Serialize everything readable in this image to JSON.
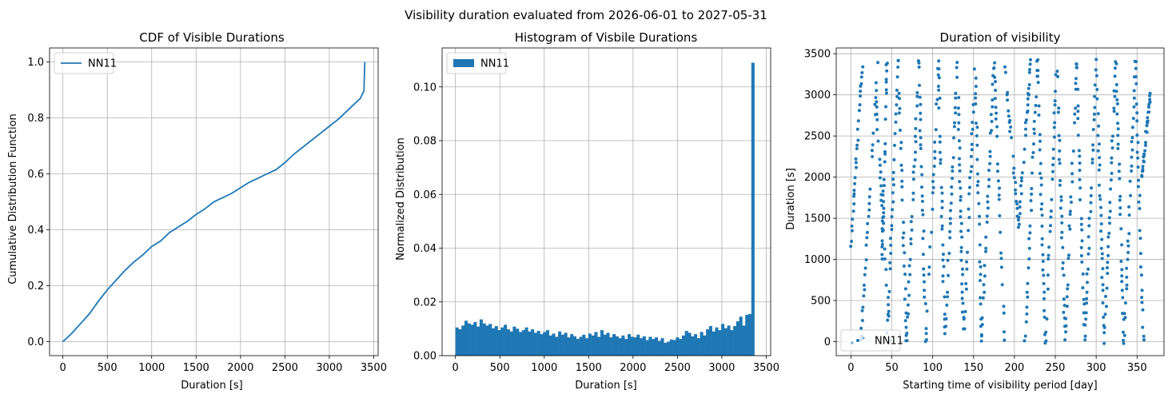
{
  "figure": {
    "suptitle": "Visibility duration evaluated from 2026-06-01 to 2027-05-31",
    "series_color": "#1f77b4"
  },
  "chart_data": [
    {
      "type": "line",
      "title": "CDF of Visible Durations",
      "xlabel": "Duration [s]",
      "ylabel": "Cumulative Distribution Function",
      "xlim": [
        -150,
        3550
      ],
      "ylim": [
        -0.05,
        1.05
      ],
      "xticks": [
        0,
        500,
        1000,
        1500,
        2000,
        2500,
        3000,
        3500
      ],
      "yticks": [
        0.0,
        0.2,
        0.4,
        0.6,
        0.8,
        1.0
      ],
      "ytick_labels": [
        "0.0",
        "0.2",
        "0.4",
        "0.6",
        "0.8",
        "1.0"
      ],
      "grid": true,
      "legend": "upper left",
      "series": [
        {
          "name": "NN11",
          "x": [
            0,
            100,
            200,
            300,
            400,
            500,
            600,
            700,
            800,
            900,
            1000,
            1100,
            1200,
            1300,
            1400,
            1500,
            1600,
            1700,
            1800,
            1900,
            2000,
            2100,
            2200,
            2300,
            2400,
            2500,
            2600,
            2700,
            2800,
            2900,
            3000,
            3100,
            3200,
            3300,
            3350,
            3380,
            3390,
            3400
          ],
          "y": [
            0.0,
            0.03,
            0.065,
            0.1,
            0.145,
            0.185,
            0.22,
            0.255,
            0.285,
            0.31,
            0.34,
            0.36,
            0.39,
            0.41,
            0.43,
            0.455,
            0.475,
            0.5,
            0.515,
            0.53,
            0.55,
            0.57,
            0.585,
            0.6,
            0.615,
            0.64,
            0.67,
            0.695,
            0.72,
            0.745,
            0.77,
            0.795,
            0.825,
            0.855,
            0.87,
            0.89,
            0.895,
            1.0
          ]
        }
      ]
    },
    {
      "type": "bar",
      "title": "Histogram of Visbile Durations",
      "xlabel": "Duration [s]",
      "ylabel": "Normalized Distribution",
      "xlim": [
        -150,
        3550
      ],
      "ylim": [
        0,
        0.1145
      ],
      "xticks": [
        0,
        500,
        1000,
        1500,
        2000,
        2500,
        3000,
        3500
      ],
      "yticks": [
        0.0,
        0.02,
        0.04,
        0.06,
        0.08,
        0.1
      ],
      "ytick_labels": [
        "0.00",
        "0.02",
        "0.04",
        "0.06",
        "0.08",
        "0.10"
      ],
      "grid": true,
      "legend": "upper left",
      "bin_start": 0,
      "bin_width": 34,
      "series": [
        {
          "name": "NN11",
          "values": [
            0.0105,
            0.0098,
            0.0112,
            0.013,
            0.012,
            0.0115,
            0.0125,
            0.0108,
            0.0135,
            0.012,
            0.0112,
            0.0118,
            0.0102,
            0.011,
            0.0095,
            0.0105,
            0.0115,
            0.0098,
            0.009,
            0.0108,
            0.01,
            0.0088,
            0.0095,
            0.0105,
            0.009,
            0.0098,
            0.0085,
            0.0092,
            0.008,
            0.0088,
            0.0095,
            0.0075,
            0.0082,
            0.007,
            0.009,
            0.0078,
            0.0085,
            0.0068,
            0.008,
            0.0072,
            0.0062,
            0.007,
            0.0078,
            0.0065,
            0.0082,
            0.0075,
            0.0088,
            0.007,
            0.0095,
            0.0078,
            0.0085,
            0.0068,
            0.008,
            0.0072,
            0.0065,
            0.0075,
            0.0062,
            0.008,
            0.007,
            0.0068,
            0.0078,
            0.0065,
            0.0072,
            0.0058,
            0.007,
            0.0062,
            0.0068,
            0.0055,
            0.0065,
            0.0048,
            0.0052,
            0.006,
            0.0058,
            0.0068,
            0.0062,
            0.0075,
            0.0092,
            0.0085,
            0.0072,
            0.008,
            0.0065,
            0.0088,
            0.0075,
            0.0098,
            0.011,
            0.009,
            0.0105,
            0.0095,
            0.0118,
            0.0102,
            0.0112,
            0.0095,
            0.011,
            0.0128,
            0.0145,
            0.0112,
            0.0152,
            0.0155,
            0.109
          ]
        }
      ]
    },
    {
      "type": "scatter",
      "title": "Duration of visibility",
      "xlabel": "Starting time of visibility period [day]",
      "ylabel": "Duration [s]",
      "xlim": [
        -18,
        383
      ],
      "ylim": [
        -170,
        3570
      ],
      "xticks": [
        0,
        50,
        100,
        150,
        200,
        250,
        300,
        350
      ],
      "yticks": [
        0,
        500,
        1000,
        1500,
        2000,
        2500,
        3000,
        3500
      ],
      "grid": true,
      "legend": "lower left",
      "series": [
        {
          "name": "NN11",
          "tracks": [
            {
              "x0": 0,
              "x1": 14,
              "y0": 1150,
              "y1": 3400
            },
            {
              "x0": 12,
              "x1": 33,
              "y0": 0,
              "y1": 3400
            },
            {
              "x0": 38,
              "x1": 44,
              "y0": 1000,
              "y1": 3400
            },
            {
              "x0": 30,
              "x1": 48,
              "y0": 3000,
              "y1": 0
            },
            {
              "x0": 44,
              "x1": 58,
              "y0": 0,
              "y1": 3400
            },
            {
              "x0": 58,
              "x1": 68,
              "y0": 3400,
              "y1": 0
            },
            {
              "x0": 68,
              "x1": 83,
              "y0": 0,
              "y1": 3400
            },
            {
              "x0": 83,
              "x1": 92,
              "y0": 3400,
              "y1": 0
            },
            {
              "x0": 92,
              "x1": 107,
              "y0": 0,
              "y1": 3400
            },
            {
              "x0": 107,
              "x1": 115,
              "y0": 3400,
              "y1": 0
            },
            {
              "x0": 115,
              "x1": 130,
              "y0": 0,
              "y1": 3400
            },
            {
              "x0": 130,
              "x1": 138,
              "y0": 3400,
              "y1": 0
            },
            {
              "x0": 138,
              "x1": 152,
              "y0": 0,
              "y1": 3400
            },
            {
              "x0": 152,
              "x1": 160,
              "y0": 3400,
              "y1": 0
            },
            {
              "x0": 160,
              "x1": 175,
              "y0": 0,
              "y1": 3400
            },
            {
              "x0": 175,
              "x1": 188,
              "y0": 3400,
              "y1": 0
            },
            {
              "x0": 188,
              "x1": 205,
              "y0": 3400,
              "y1": 1400
            },
            {
              "x0": 205,
              "x1": 220,
              "y0": 1400,
              "y1": 3400
            },
            {
              "x0": 213,
              "x1": 228,
              "y0": 0,
              "y1": 3400
            },
            {
              "x0": 228,
              "x1": 238,
              "y0": 3400,
              "y1": 0
            },
            {
              "x0": 238,
              "x1": 252,
              "y0": 0,
              "y1": 3400
            },
            {
              "x0": 252,
              "x1": 262,
              "y0": 3400,
              "y1": 0
            },
            {
              "x0": 262,
              "x1": 276,
              "y0": 0,
              "y1": 3400
            },
            {
              "x0": 276,
              "x1": 286,
              "y0": 3400,
              "y1": 0
            },
            {
              "x0": 286,
              "x1": 300,
              "y0": 0,
              "y1": 3400
            },
            {
              "x0": 300,
              "x1": 310,
              "y0": 3400,
              "y1": 0
            },
            {
              "x0": 310,
              "x1": 324,
              "y0": 0,
              "y1": 3400
            },
            {
              "x0": 324,
              "x1": 334,
              "y0": 3400,
              "y1": 0
            },
            {
              "x0": 334,
              "x1": 348,
              "y0": 0,
              "y1": 3400
            },
            {
              "x0": 348,
              "x1": 358,
              "y0": 3400,
              "y1": 0
            },
            {
              "x0": 356,
              "x1": 366,
              "y0": 2000,
              "y1": 3000
            }
          ]
        }
      ]
    }
  ]
}
